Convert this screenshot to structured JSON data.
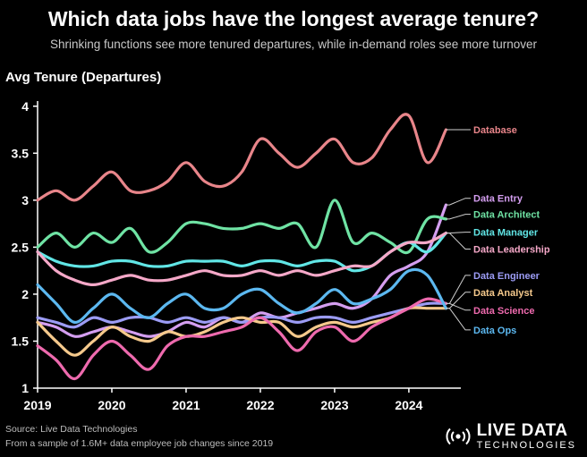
{
  "header": {
    "title": "Which data jobs have the longest average tenure?",
    "subtitle": "Shrinking functions see more tenured departures, while in-demand roles see more turnover"
  },
  "footer": {
    "source": "Source: Live Data Technologies",
    "sample": "From a sample of 1.6M+ data employee job changes since 2019"
  },
  "logo": {
    "line1": "LIVE DATA",
    "line2": "TECHNOLOGIES",
    "icon": "broadcast-icon"
  },
  "chart_data": {
    "type": "line",
    "title": "Which data jobs have the longest average tenure?",
    "subtitle": "Shrinking functions see more tenured departures, while in-demand roles see more turnover",
    "ylabel": "Avg Tenure (Departures)",
    "xlabel": "",
    "xlim": [
      2019,
      2024.7
    ],
    "ylim": [
      1,
      4.15
    ],
    "xticks": [
      "2019",
      "2020",
      "2021",
      "2022",
      "2023",
      "2024"
    ],
    "yticks": [
      "1",
      "1.5",
      "2",
      "2.5",
      "3",
      "3.5",
      "4"
    ],
    "grid": false,
    "legend": "direct labels at right end of lines",
    "x": [
      2019,
      2019.25,
      2019.5,
      2019.75,
      2020,
      2020.25,
      2020.5,
      2020.75,
      2021,
      2021.25,
      2021.5,
      2021.75,
      2022,
      2022.25,
      2022.5,
      2022.75,
      2023,
      2023.25,
      2023.5,
      2023.75,
      2024,
      2024.25,
      2024.5
    ],
    "series": [
      {
        "name": "Database",
        "color": "#e8858a",
        "label_y": 3.75,
        "values": [
          3.0,
          3.1,
          3.0,
          3.15,
          3.3,
          3.1,
          3.1,
          3.2,
          3.4,
          3.2,
          3.15,
          3.3,
          3.65,
          3.5,
          3.35,
          3.5,
          3.65,
          3.4,
          3.45,
          3.75,
          3.9,
          3.4,
          3.75
        ]
      },
      {
        "name": "Data Entry",
        "color": "#d49ef0",
        "label_y": 3.02,
        "values": [
          1.7,
          1.65,
          1.55,
          1.6,
          1.65,
          1.6,
          1.55,
          1.6,
          1.7,
          1.65,
          1.75,
          1.7,
          1.8,
          1.75,
          1.8,
          1.85,
          1.9,
          1.85,
          1.95,
          2.2,
          2.3,
          2.45,
          2.95
        ]
      },
      {
        "name": "Data Architect",
        "color": "#6fe3a4",
        "label_y": 2.85,
        "values": [
          2.5,
          2.65,
          2.5,
          2.65,
          2.55,
          2.7,
          2.45,
          2.55,
          2.75,
          2.75,
          2.7,
          2.7,
          2.75,
          2.7,
          2.75,
          2.5,
          3.0,
          2.55,
          2.65,
          2.55,
          2.45,
          2.8,
          2.8
        ]
      },
      {
        "name": "Data Manager",
        "color": "#61e6e6",
        "label_y": 2.66,
        "values": [
          2.45,
          2.35,
          2.3,
          2.3,
          2.35,
          2.35,
          2.3,
          2.3,
          2.35,
          2.35,
          2.35,
          2.3,
          2.35,
          2.35,
          2.3,
          2.35,
          2.35,
          2.25,
          2.3,
          2.45,
          2.55,
          2.45,
          2.65
        ]
      },
      {
        "name": "Data Leadership",
        "color": "#f5a8c8",
        "label_y": 2.48,
        "values": [
          2.45,
          2.25,
          2.15,
          2.1,
          2.15,
          2.2,
          2.15,
          2.15,
          2.2,
          2.25,
          2.2,
          2.2,
          2.25,
          2.2,
          2.25,
          2.2,
          2.25,
          2.3,
          2.3,
          2.45,
          2.55,
          2.55,
          2.65
        ]
      },
      {
        "name": "Data Engineer",
        "color": "#9c9cf5",
        "label_y": 2.2,
        "values": [
          1.75,
          1.7,
          1.65,
          1.75,
          1.7,
          1.75,
          1.75,
          1.7,
          1.75,
          1.7,
          1.75,
          1.7,
          1.75,
          1.75,
          1.7,
          1.75,
          1.75,
          1.7,
          1.75,
          1.8,
          1.85,
          1.9,
          1.9
        ]
      },
      {
        "name": "Data Analyst",
        "color": "#f5c98c",
        "label_y": 2.02,
        "values": [
          1.7,
          1.5,
          1.35,
          1.5,
          1.65,
          1.55,
          1.5,
          1.6,
          1.55,
          1.6,
          1.7,
          1.75,
          1.7,
          1.7,
          1.55,
          1.65,
          1.7,
          1.65,
          1.7,
          1.75,
          1.85,
          1.85,
          1.85
        ]
      },
      {
        "name": "Data Science",
        "color": "#ee6aae",
        "label_y": 1.83,
        "values": [
          1.45,
          1.3,
          1.1,
          1.35,
          1.5,
          1.35,
          1.2,
          1.45,
          1.55,
          1.55,
          1.6,
          1.65,
          1.75,
          1.6,
          1.4,
          1.6,
          1.65,
          1.5,
          1.65,
          1.75,
          1.85,
          1.95,
          1.9
        ]
      },
      {
        "name": "Data Ops",
        "color": "#5cb8f0",
        "label_y": 1.62,
        "values": [
          2.1,
          1.9,
          1.7,
          1.85,
          2.0,
          1.85,
          1.75,
          1.9,
          2.0,
          1.85,
          1.85,
          2.0,
          2.05,
          1.9,
          1.8,
          1.9,
          2.05,
          1.9,
          1.95,
          2.05,
          2.25,
          2.2,
          1.85
        ]
      }
    ]
  }
}
